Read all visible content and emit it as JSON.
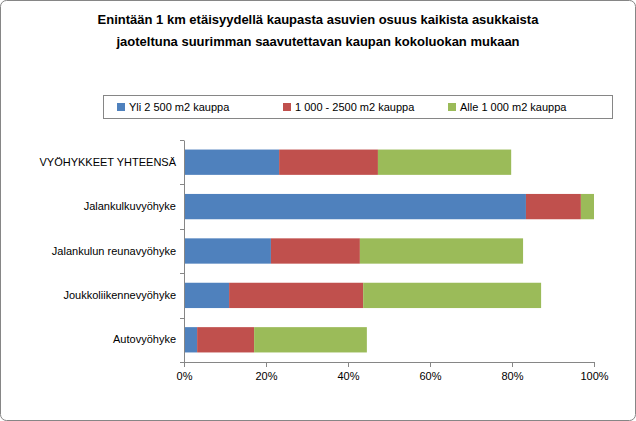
{
  "chart_data": {
    "type": "bar",
    "orientation": "horizontal",
    "stacked": true,
    "title": "Enintään 1 km etäisyydellä kaupasta asuvien osuus kaikista asukkaista\njaoteltuna suurimman saavutettavan kaupan kokoluokan mukaan",
    "categories": [
      "VYÖHYKKEET YHTEENSÄ",
      "Jalankulkuvyöhyke",
      "Jalankulun reunavyöhyke",
      "Joukkoliikennevyöhyke",
      "Autovyöhyke"
    ],
    "series": [
      {
        "name": "Yli 2 500 m2 kauppa",
        "color": "#4f81bd",
        "values": [
          23.2,
          83.4,
          21.2,
          11.0,
          3.2
        ]
      },
      {
        "name": "1 000 - 2500 m2 kauppa",
        "color": "#c0504d",
        "values": [
          24.1,
          13.4,
          21.7,
          32.7,
          13.9
        ]
      },
      {
        "name": "Alle 1 000 m2 kauppa",
        "color": "#9bbb59",
        "values": [
          32.5,
          3.2,
          39.8,
          43.4,
          27.5
        ]
      }
    ],
    "xlim": [
      0,
      100
    ],
    "xticks": [
      {
        "value": 0,
        "label": "0%"
      },
      {
        "value": 20,
        "label": "20%"
      },
      {
        "value": 40,
        "label": "40%"
      },
      {
        "value": 60,
        "label": "60%"
      },
      {
        "value": 80,
        "label": "80%"
      },
      {
        "value": 100,
        "label": "100%"
      }
    ],
    "grid": false,
    "legend": "top"
  }
}
